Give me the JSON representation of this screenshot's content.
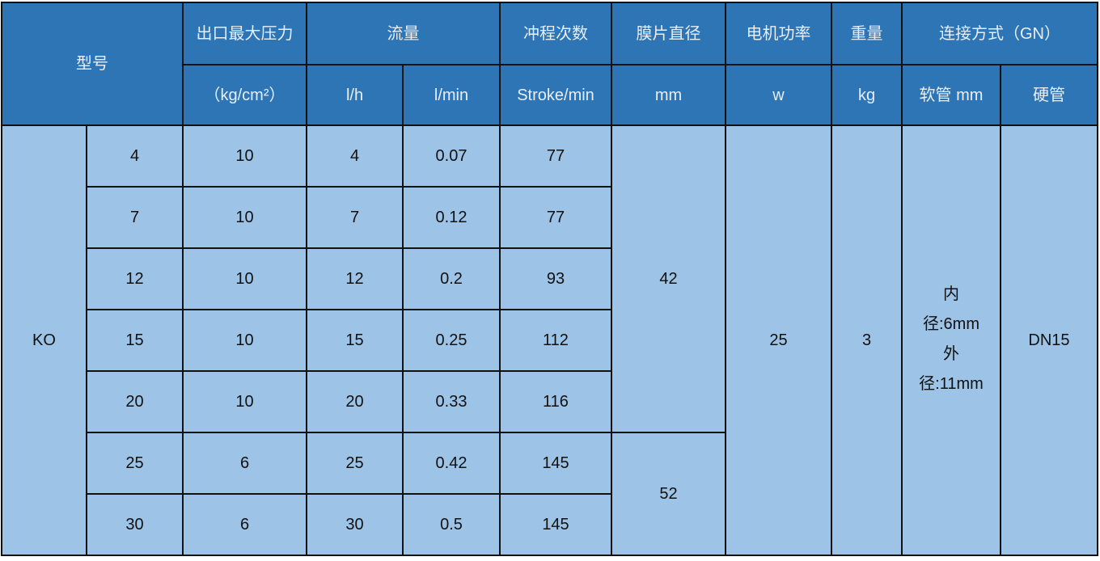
{
  "header": {
    "model": "型号",
    "pressure": "出口最大压力",
    "pressure_unit": "（kg/cm²）",
    "flow": "流量",
    "flow_unit_lh": "l/h",
    "flow_unit_lmin": "l/min",
    "stroke": "冲程次数",
    "stroke_unit": "Stroke/min",
    "diaphragm": "膜片直径",
    "diaphragm_unit": "mm",
    "motor": "电机功率",
    "motor_unit": "w",
    "weight": "重量",
    "weight_unit": "kg",
    "connection": "连接方式（GN）",
    "soft_pipe": "软管 mm",
    "hard_pipe": "硬管"
  },
  "series": "KO",
  "rows": [
    {
      "model": "4",
      "pressure": "10",
      "lh": "4",
      "lmin": "0.07",
      "stroke": "77"
    },
    {
      "model": "7",
      "pressure": "10",
      "lh": "7",
      "lmin": "0.12",
      "stroke": "77"
    },
    {
      "model": "12",
      "pressure": "10",
      "lh": "12",
      "lmin": "0.2",
      "stroke": "93"
    },
    {
      "model": "15",
      "pressure": "10",
      "lh": "15",
      "lmin": "0.25",
      "stroke": "112"
    },
    {
      "model": "20",
      "pressure": "10",
      "lh": "20",
      "lmin": "0.33",
      "stroke": "116"
    },
    {
      "model": "25",
      "pressure": "6",
      "lh": "25",
      "lmin": "0.42",
      "stroke": "145"
    },
    {
      "model": "30",
      "pressure": "6",
      "lh": "30",
      "lmin": "0.5",
      "stroke": "145"
    }
  ],
  "diaphragm_a": "42",
  "diaphragm_b": "52",
  "motor": "25",
  "weight": "3",
  "soft_pipe_lines": [
    "内",
    "径:6mm",
    "外",
    "径:11mm"
  ],
  "hard_pipe": "DN15",
  "colors": {
    "header_bg": "#2E75B6",
    "body_bg": "#9DC3E6",
    "border": "#111111"
  }
}
